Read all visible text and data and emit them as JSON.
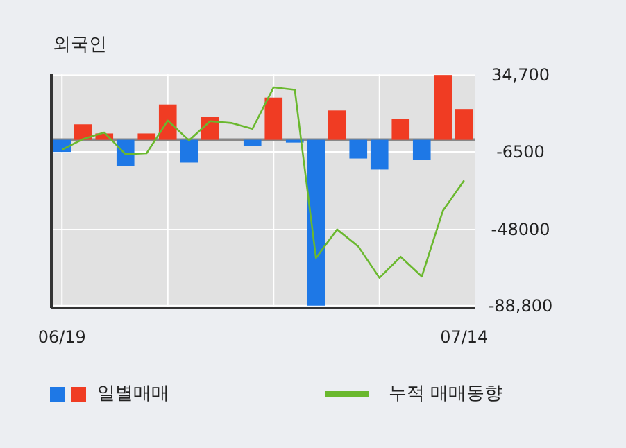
{
  "chart_data": {
    "type": "bar",
    "title": "외국인",
    "categories": [
      "06/19",
      null,
      null,
      null,
      null,
      null,
      null,
      null,
      null,
      null,
      null,
      null,
      null,
      null,
      null,
      null,
      null,
      null,
      null,
      "07/14"
    ],
    "series": [
      {
        "name": "일별매매",
        "colors": [
          "#1e78e6",
          "#f03c23",
          "#f03c23",
          "#1e78e6",
          "#f03c23",
          "#f03c23",
          "#1e78e6",
          "#f03c23",
          "#f03c23",
          "#1e78e6",
          "#f03c23",
          "#1e78e6",
          "#1e78e6",
          "#f03c23",
          "#1e78e6",
          "#1e78e6",
          "#f03c23",
          "#1e78e6",
          "#f03c23",
          "#f03c23"
        ],
        "values": [
          -6500,
          8300,
          3400,
          -13900,
          3400,
          18900,
          -12200,
          12300,
          0,
          -3300,
          22600,
          -1500,
          -88800,
          15700,
          -10000,
          -15900,
          11300,
          -10700,
          34700,
          16500
        ]
      },
      {
        "name": "누적 매매동향",
        "type": "line",
        "color": "#6ab82e",
        "values": [
          -5300,
          400,
          3900,
          -7700,
          -7200,
          10300,
          -300,
          10000,
          9000,
          5900,
          28100,
          26800,
          -63300,
          -48000,
          -57100,
          -73900,
          -62600,
          -73200,
          -37900,
          -21800
        ]
      }
    ],
    "ylim": [
      -90000,
      35500
    ],
    "yticks": [
      {
        "value": 34700,
        "label": "34,700"
      },
      -6500,
      -48000,
      {
        "value": -88800,
        "label": "-88,800"
      }
    ],
    "grid": true,
    "legend": "bottom",
    "marker": "none",
    "line_style": "solid"
  }
}
